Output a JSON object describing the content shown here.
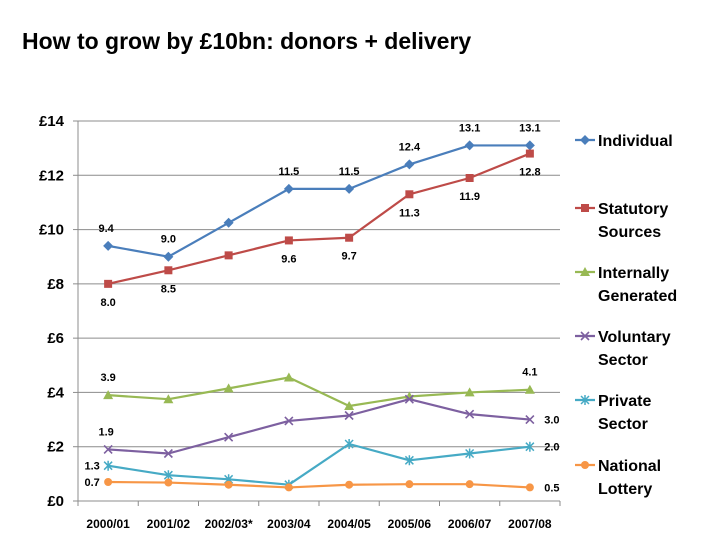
{
  "chart_data": {
    "type": "line",
    "title": "How to grow by £10bn: donors + delivery",
    "xlabel": "",
    "ylabel": "",
    "categories": [
      "2000/01",
      "2001/02",
      "2002/03*",
      "2003/04",
      "2004/05",
      "2005/06",
      "2006/07",
      "2007/08"
    ],
    "ylim": [
      0,
      14
    ],
    "yticks": [
      0,
      2,
      4,
      6,
      8,
      10,
      12,
      14
    ],
    "ytick_labels": [
      "£0",
      "£2",
      "£4",
      "£6",
      "£8",
      "£10",
      "£12",
      "£14"
    ],
    "grid": true,
    "legend_position": "right",
    "series": [
      {
        "name": "Individual",
        "color": "#4a7ebb",
        "marker": "diamond",
        "values": [
          9.4,
          9.0,
          10.25,
          11.5,
          11.5,
          12.4,
          13.1,
          13.1
        ]
      },
      {
        "name": "Statutory Sources",
        "color": "#be4b48",
        "marker": "square",
        "values": [
          8.0,
          8.5,
          9.05,
          9.6,
          9.7,
          11.3,
          11.9,
          12.8
        ]
      },
      {
        "name": "Internally Generated",
        "color": "#98b954",
        "marker": "triangle",
        "values": [
          3.9,
          3.75,
          4.15,
          4.55,
          3.5,
          3.85,
          4.0,
          4.1
        ]
      },
      {
        "name": "Voluntary Sector",
        "color": "#7d60a0",
        "marker": "x",
        "values": [
          1.9,
          1.75,
          2.35,
          2.95,
          3.15,
          3.75,
          3.2,
          3.0
        ]
      },
      {
        "name": "Private Sector",
        "color": "#46aac5",
        "marker": "star",
        "values": [
          1.3,
          0.95,
          0.8,
          0.6,
          2.1,
          1.5,
          1.75,
          2.0
        ]
      },
      {
        "name": "National Lottery",
        "color": "#f79646",
        "marker": "circle",
        "values": [
          0.7,
          0.68,
          0.6,
          0.5,
          0.6,
          0.62,
          0.62,
          0.5
        ]
      }
    ],
    "data_labels": [
      {
        "series": 0,
        "index": 0,
        "text": "9.4"
      },
      {
        "series": 0,
        "index": 1,
        "text": "9.0"
      },
      {
        "series": 0,
        "index": 3,
        "text": "11.5"
      },
      {
        "series": 0,
        "index": 4,
        "text": "11.5"
      },
      {
        "series": 0,
        "index": 5,
        "text": "12.4"
      },
      {
        "series": 0,
        "index": 6,
        "text": "13.1"
      },
      {
        "series": 0,
        "index": 7,
        "text": "13.1"
      },
      {
        "series": 1,
        "index": 0,
        "text": "8.0"
      },
      {
        "series": 1,
        "index": 1,
        "text": "8.5"
      },
      {
        "series": 1,
        "index": 3,
        "text": "9.6"
      },
      {
        "series": 1,
        "index": 4,
        "text": "9.7"
      },
      {
        "series": 1,
        "index": 5,
        "text": "11.3"
      },
      {
        "series": 1,
        "index": 6,
        "text": "11.9"
      },
      {
        "series": 1,
        "index": 7,
        "text": "12.8"
      },
      {
        "series": 2,
        "index": 0,
        "text": "3.9"
      },
      {
        "series": 2,
        "index": 7,
        "text": "4.1"
      },
      {
        "series": 3,
        "index": 0,
        "text": "1.9"
      },
      {
        "series": 3,
        "index": 7,
        "text": "3.0"
      },
      {
        "series": 4,
        "index": 0,
        "text": "1.3"
      },
      {
        "series": 4,
        "index": 7,
        "text": "2.0"
      },
      {
        "series": 5,
        "index": 0,
        "text": "0.7"
      },
      {
        "series": 5,
        "index": 7,
        "text": "0.5"
      }
    ]
  }
}
